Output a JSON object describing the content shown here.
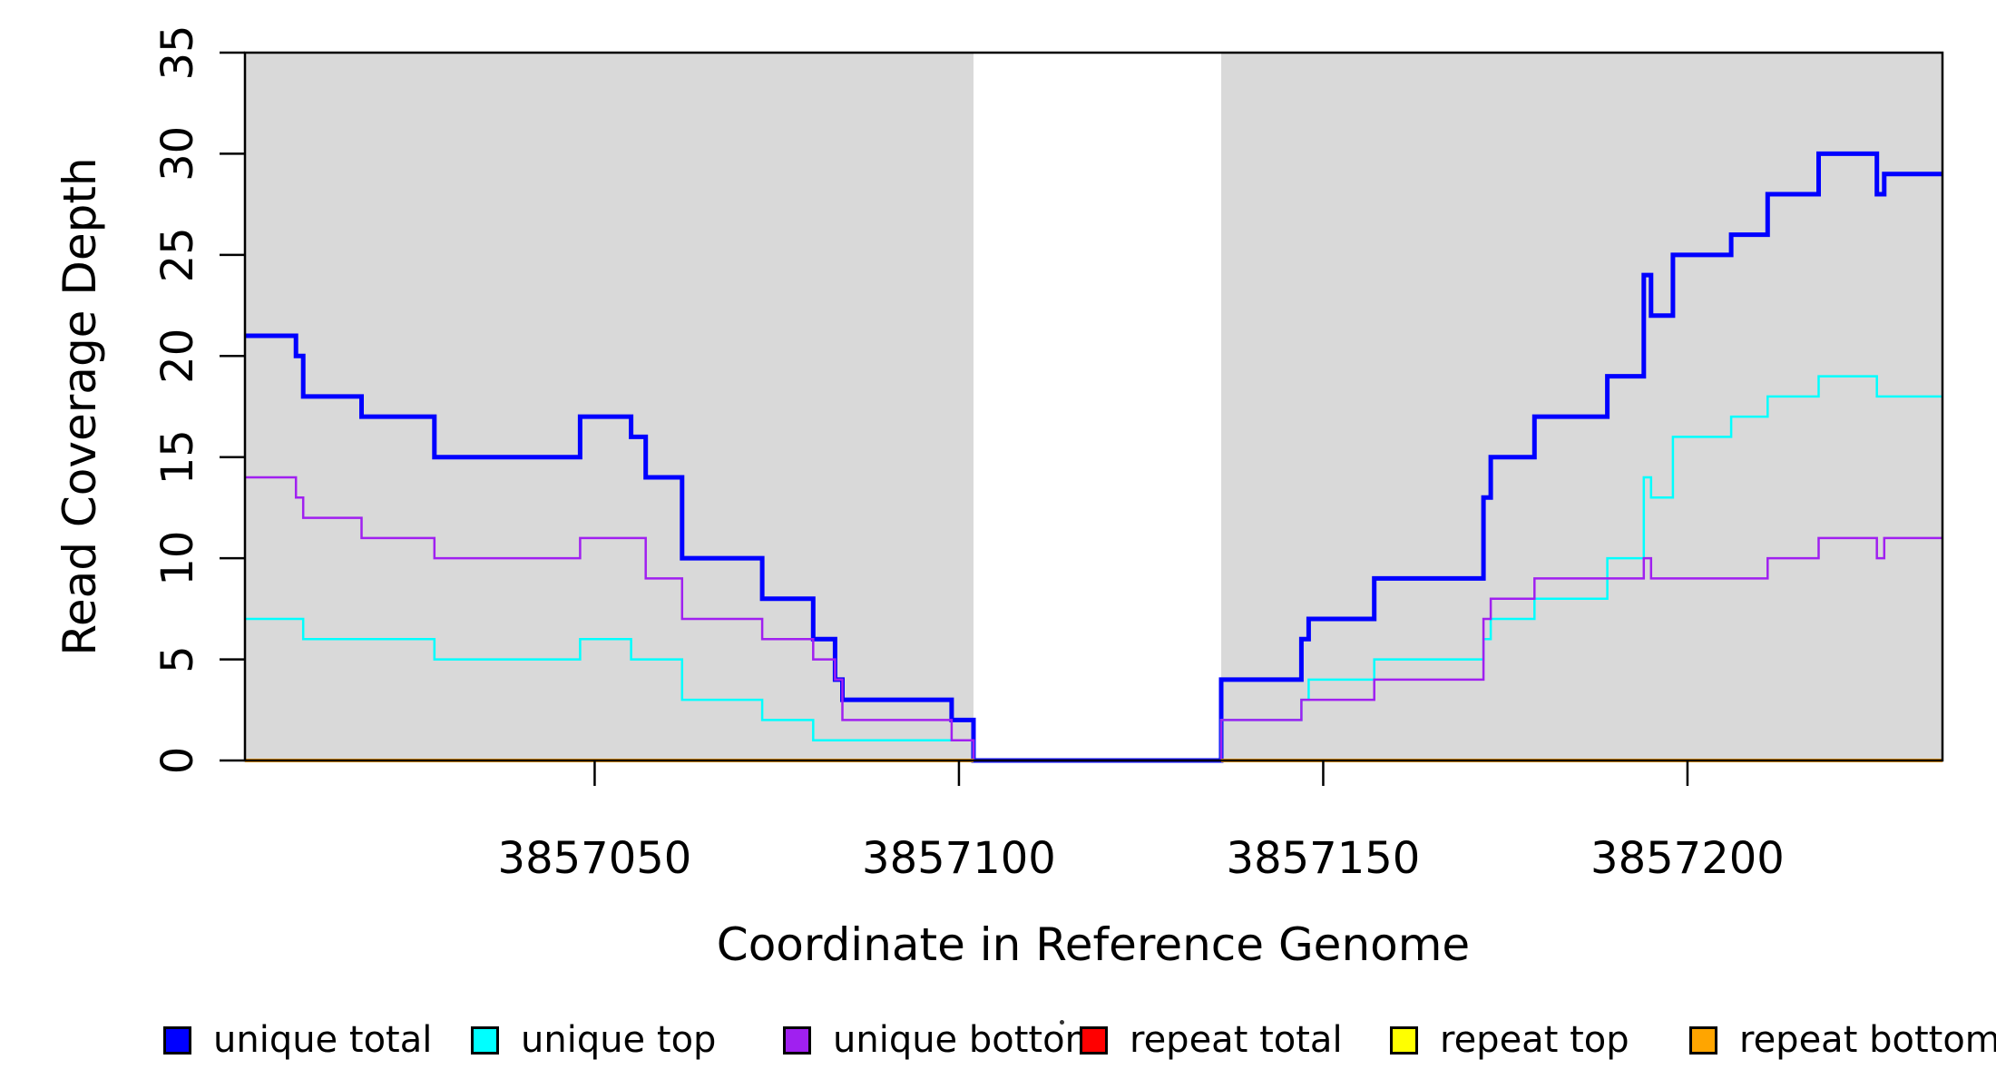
{
  "chart_data": {
    "type": "line",
    "subtype": "step-coverage",
    "title": "",
    "xlabel": "Coordinate in Reference Genome",
    "ylabel": "Read Coverage Depth",
    "xlim": [
      3857002,
      3857235
    ],
    "ylim": [
      0,
      35
    ],
    "x_ticks": [
      3857050,
      3857100,
      3857150,
      3857200
    ],
    "y_ticks": [
      0,
      5,
      10,
      15,
      20,
      25,
      30,
      35
    ],
    "grid": false,
    "legend_position": "bottom-horizontal",
    "plot_background": "#ffffff",
    "shaded_regions": [
      {
        "x0": 3857002,
        "x1": 3857102,
        "color": "#d9d9d9"
      },
      {
        "x0": 3857136,
        "x1": 3857235,
        "color": "#d9d9d9"
      }
    ],
    "gap_region": {
      "x0": 3857102,
      "x1": 3857136,
      "note": "white gap, all unique coverage drops to 0"
    },
    "series": [
      {
        "name": "unique total",
        "color": "#0000ff",
        "line_width": 5,
        "steps": [
          [
            3857002,
            21
          ],
          [
            3857009,
            20
          ],
          [
            3857010,
            18
          ],
          [
            3857018,
            17
          ],
          [
            3857028,
            15
          ],
          [
            3857048,
            17
          ],
          [
            3857055,
            16
          ],
          [
            3857057,
            14
          ],
          [
            3857062,
            10
          ],
          [
            3857073,
            8
          ],
          [
            3857080,
            6
          ],
          [
            3857083,
            4
          ],
          [
            3857084,
            3
          ],
          [
            3857099,
            2
          ],
          [
            3857102,
            0
          ],
          [
            3857136,
            4
          ],
          [
            3857147,
            6
          ],
          [
            3857148,
            7
          ],
          [
            3857157,
            9
          ],
          [
            3857172,
            13
          ],
          [
            3857173,
            15
          ],
          [
            3857179,
            17
          ],
          [
            3857189,
            19
          ],
          [
            3857194,
            24
          ],
          [
            3857195,
            22
          ],
          [
            3857198,
            25
          ],
          [
            3857206,
            26
          ],
          [
            3857211,
            28
          ],
          [
            3857218,
            30
          ],
          [
            3857226,
            28
          ],
          [
            3857227,
            29
          ]
        ]
      },
      {
        "name": "unique top",
        "color": "#00ffff",
        "line_width": 2.5,
        "steps": [
          [
            3857002,
            7
          ],
          [
            3857010,
            6
          ],
          [
            3857028,
            5
          ],
          [
            3857048,
            6
          ],
          [
            3857055,
            5
          ],
          [
            3857062,
            3
          ],
          [
            3857073,
            2
          ],
          [
            3857080,
            1
          ],
          [
            3857102,
            0
          ],
          [
            3857136,
            2
          ],
          [
            3857147,
            3
          ],
          [
            3857148,
            4
          ],
          [
            3857157,
            5
          ],
          [
            3857172,
            6
          ],
          [
            3857173,
            7
          ],
          [
            3857179,
            8
          ],
          [
            3857189,
            10
          ],
          [
            3857194,
            14
          ],
          [
            3857195,
            13
          ],
          [
            3857198,
            16
          ],
          [
            3857206,
            17
          ],
          [
            3857211,
            18
          ],
          [
            3857218,
            19
          ],
          [
            3857226,
            18
          ]
        ]
      },
      {
        "name": "unique bottom",
        "color": "#a020f0",
        "line_width": 2.5,
        "steps": [
          [
            3857002,
            14
          ],
          [
            3857009,
            13
          ],
          [
            3857010,
            12
          ],
          [
            3857018,
            11
          ],
          [
            3857028,
            10
          ],
          [
            3857048,
            11
          ],
          [
            3857057,
            9
          ],
          [
            3857062,
            7
          ],
          [
            3857073,
            6
          ],
          [
            3857080,
            5
          ],
          [
            3857083,
            4
          ],
          [
            3857084,
            2
          ],
          [
            3857099,
            1
          ],
          [
            3857102,
            0
          ],
          [
            3857136,
            2
          ],
          [
            3857147,
            3
          ],
          [
            3857157,
            4
          ],
          [
            3857172,
            7
          ],
          [
            3857173,
            8
          ],
          [
            3857179,
            9
          ],
          [
            3857194,
            10
          ],
          [
            3857195,
            9
          ],
          [
            3857211,
            10
          ],
          [
            3857218,
            11
          ],
          [
            3857226,
            10
          ],
          [
            3857227,
            11
          ]
        ]
      },
      {
        "name": "repeat total",
        "color": "#ff0000",
        "line_width": 2.5,
        "value": 0,
        "segments": [
          [
            3857002,
            3857102
          ],
          [
            3857136,
            3857235
          ]
        ]
      },
      {
        "name": "repeat top",
        "color": "#ffff00",
        "line_width": 2.5,
        "value": 0,
        "segments": [
          [
            3857002,
            3857102
          ],
          [
            3857136,
            3857235
          ]
        ]
      },
      {
        "name": "repeat bottom",
        "color": "#ffa500",
        "line_width": 4,
        "value": 0,
        "segments": [
          [
            3857002,
            3857102
          ],
          [
            3857136,
            3857235
          ]
        ]
      }
    ]
  },
  "legend": {
    "items": [
      {
        "label": "unique total",
        "color": "#0000ff"
      },
      {
        "label": "unique top",
        "color": "#00ffff"
      },
      {
        "label": "unique bottom",
        "color": "#a020f0"
      },
      {
        "label": "repeat total",
        "color": "#ff0000"
      },
      {
        "label": "repeat top",
        "color": "#ffff00"
      },
      {
        "label": "repeat bottom",
        "color": "#ffa500"
      }
    ]
  },
  "axes": {
    "x_title": "Coordinate in Reference Genome",
    "y_title": "Read Coverage Depth"
  }
}
